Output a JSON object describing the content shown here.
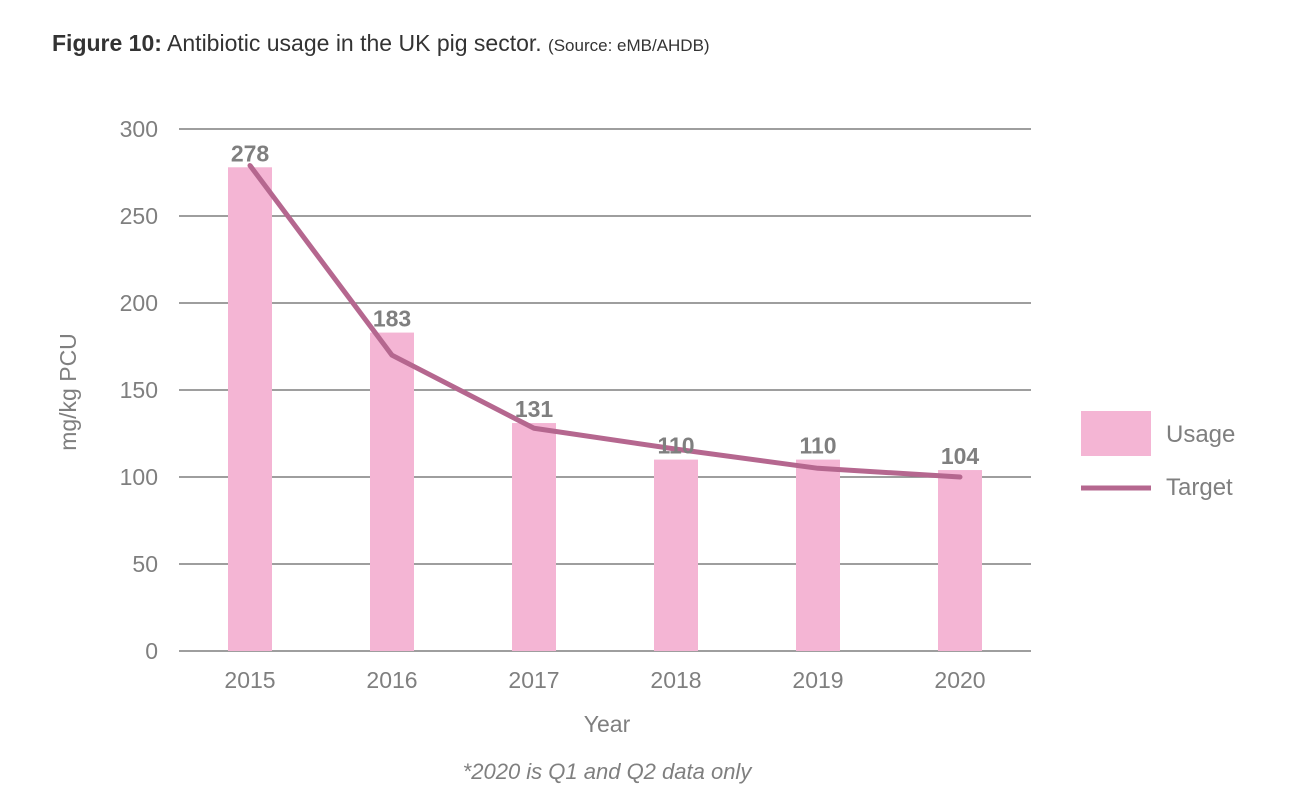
{
  "figure": {
    "label": "Figure 10:",
    "title": "Antibiotic usage in the UK pig sector.",
    "source": "(Source: eMB/AHDB)"
  },
  "chart_data": {
    "type": "bar",
    "categories": [
      "2015",
      "2016",
      "2017",
      "2018",
      "2019",
      "2020"
    ],
    "series": [
      {
        "name": "Usage",
        "type": "bar",
        "values": [
          278,
          183,
          131,
          110,
          110,
          104
        ],
        "labels": [
          "278",
          "183",
          "131",
          "110",
          "110",
          "104"
        ],
        "color": "#f4b5d4"
      },
      {
        "name": "Target",
        "type": "line",
        "values": [
          279,
          170,
          128,
          116,
          105,
          100
        ],
        "color": "#b5678f"
      }
    ],
    "xlabel": "Year",
    "ylabel": "mg/kg PCU",
    "ylim": [
      0,
      300
    ],
    "yticks": [
      0,
      50,
      100,
      150,
      200,
      250,
      300
    ],
    "grid": true,
    "legend_position": "right",
    "footnote": "*2020 is Q1 and Q2 data only",
    "colors": {
      "grid": "#7f7f7f",
      "axis_text": "#7f7f7f",
      "data_label": "#7f7f7f"
    }
  }
}
